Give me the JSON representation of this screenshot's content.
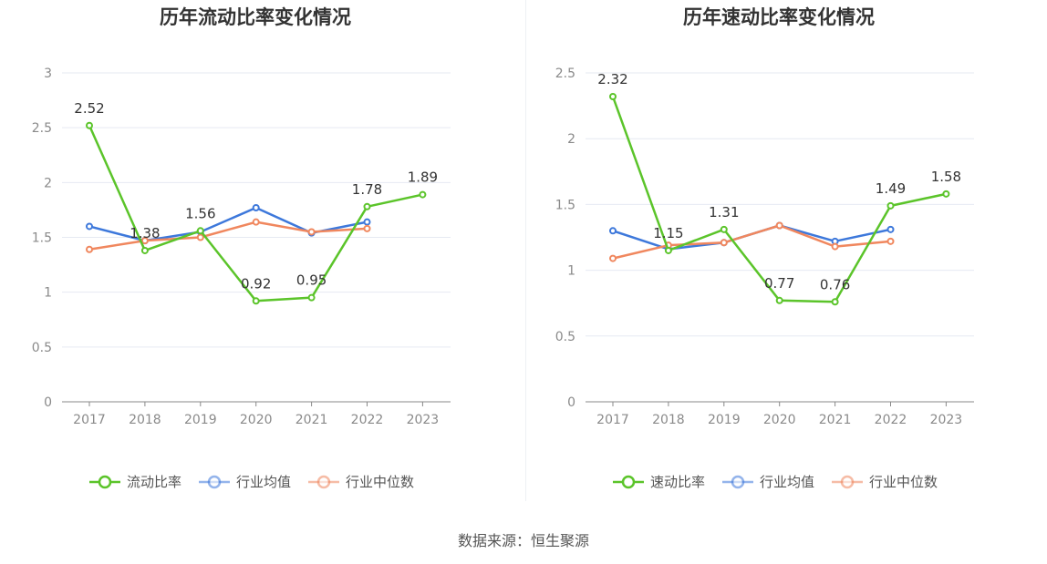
{
  "colors": {
    "series1": "#5bc42a",
    "series2": "#3d78db",
    "series3": "#f0875e",
    "grid": "#e6e9f2",
    "axis": "#888888"
  },
  "chart_data": [
    {
      "type": "line",
      "title": "历年流动比率变化情况",
      "categories": [
        "2017",
        "2018",
        "2019",
        "2020",
        "2021",
        "2022",
        "2023"
      ],
      "ylim": [
        0,
        3
      ],
      "yticks": [
        "0",
        "0.5",
        "1",
        "1.5",
        "2",
        "2.5",
        "3"
      ],
      "grid": true,
      "legend_position": "bottom",
      "series": [
        {
          "name": "流动比率",
          "values": [
            2.52,
            1.38,
            1.56,
            0.92,
            0.95,
            1.78,
            1.89
          ],
          "labels": [
            "2.52",
            "1.38",
            "1.56",
            "0.92",
            "0.95",
            "1.78",
            "1.89"
          ]
        },
        {
          "name": "行业均值",
          "values": [
            1.6,
            1.47,
            1.55,
            1.77,
            1.54,
            1.64,
            null
          ]
        },
        {
          "name": "行业中位数",
          "values": [
            1.39,
            1.47,
            1.5,
            1.64,
            1.55,
            1.58,
            null
          ]
        }
      ]
    },
    {
      "type": "line",
      "title": "历年速动比率变化情况",
      "categories": [
        "2017",
        "2018",
        "2019",
        "2020",
        "2021",
        "2022",
        "2023"
      ],
      "ylim": [
        0,
        2.5
      ],
      "yticks": [
        "0",
        "0.5",
        "1",
        "1.5",
        "2",
        "2.5"
      ],
      "grid": true,
      "legend_position": "bottom",
      "series": [
        {
          "name": "速动比率",
          "values": [
            2.32,
            1.15,
            1.31,
            0.77,
            0.76,
            1.49,
            1.58
          ],
          "labels": [
            "2.32",
            "1.15",
            "1.31",
            "0.77",
            "0.76",
            "1.49",
            "1.58"
          ]
        },
        {
          "name": "行业均值",
          "values": [
            1.3,
            1.16,
            1.21,
            1.34,
            1.22,
            1.31,
            null
          ]
        },
        {
          "name": "行业中位数",
          "values": [
            1.09,
            1.19,
            1.21,
            1.34,
            1.18,
            1.22,
            null
          ]
        }
      ]
    }
  ],
  "footer": {
    "source": "数据来源：恒生聚源"
  }
}
